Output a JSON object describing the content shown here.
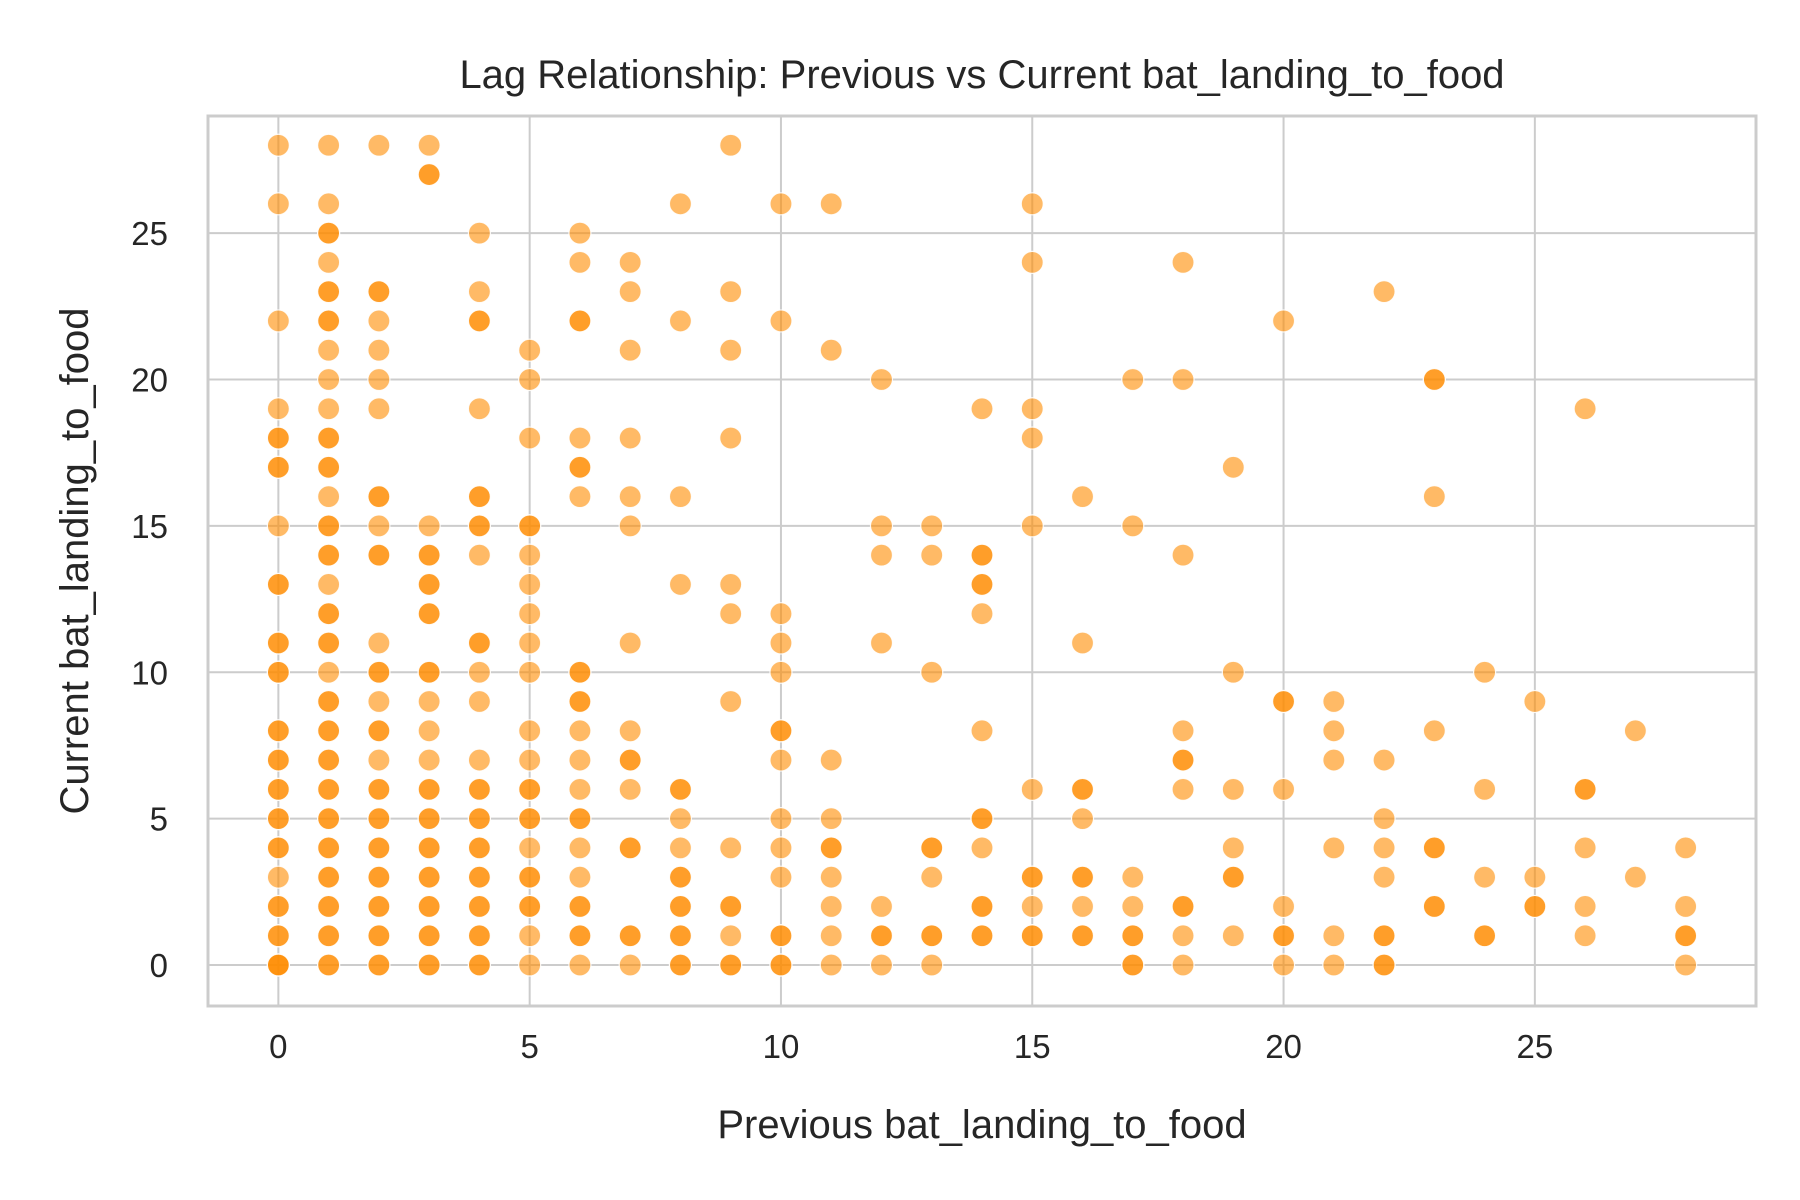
{
  "chart_data": {
    "type": "scatter",
    "title": "Lag Relationship: Previous vs Current bat_landing_to_food",
    "xlabel": "Previous bat_landing_to_food",
    "ylabel": "Current bat_landing_to_food",
    "xlim": [
      -1.4,
      29.4
    ],
    "ylim": [
      -1.4,
      29.0
    ],
    "xticks": [
      0,
      5,
      10,
      15,
      20,
      25
    ],
    "yticks": [
      0,
      5,
      10,
      15,
      20,
      25
    ],
    "grid": true,
    "color": "#ff8c00",
    "points": [
      [
        0,
        28
      ],
      [
        0,
        26
      ],
      [
        0,
        22
      ],
      [
        0,
        19
      ],
      [
        0,
        18
      ],
      [
        0,
        18
      ],
      [
        0,
        17
      ],
      [
        0,
        17
      ],
      [
        0,
        15
      ],
      [
        0,
        13
      ],
      [
        0,
        13
      ],
      [
        0,
        11
      ],
      [
        0,
        11
      ],
      [
        0,
        10
      ],
      [
        0,
        10
      ],
      [
        0,
        8
      ],
      [
        0,
        8
      ],
      [
        0,
        7
      ],
      [
        0,
        7
      ],
      [
        0,
        6
      ],
      [
        0,
        6
      ],
      [
        0,
        5
      ],
      [
        0,
        5
      ],
      [
        0,
        4
      ],
      [
        0,
        4
      ],
      [
        0,
        3
      ],
      [
        0,
        2
      ],
      [
        0,
        2
      ],
      [
        0,
        1
      ],
      [
        0,
        1
      ],
      [
        0,
        0
      ],
      [
        0,
        0
      ],
      [
        0,
        0
      ],
      [
        1,
        28
      ],
      [
        1,
        26
      ],
      [
        1,
        25
      ],
      [
        1,
        25
      ],
      [
        1,
        24
      ],
      [
        1,
        23
      ],
      [
        1,
        23
      ],
      [
        1,
        22
      ],
      [
        1,
        22
      ],
      [
        1,
        21
      ],
      [
        1,
        20
      ],
      [
        1,
        19
      ],
      [
        1,
        18
      ],
      [
        1,
        18
      ],
      [
        1,
        17
      ],
      [
        1,
        17
      ],
      [
        1,
        16
      ],
      [
        1,
        15
      ],
      [
        1,
        15
      ],
      [
        1,
        14
      ],
      [
        1,
        14
      ],
      [
        1,
        13
      ],
      [
        1,
        12
      ],
      [
        1,
        12
      ],
      [
        1,
        11
      ],
      [
        1,
        11
      ],
      [
        1,
        10
      ],
      [
        1,
        9
      ],
      [
        1,
        9
      ],
      [
        1,
        8
      ],
      [
        1,
        8
      ],
      [
        1,
        7
      ],
      [
        1,
        7
      ],
      [
        1,
        6
      ],
      [
        1,
        6
      ],
      [
        1,
        5
      ],
      [
        1,
        5
      ],
      [
        1,
        4
      ],
      [
        1,
        4
      ],
      [
        1,
        3
      ],
      [
        1,
        3
      ],
      [
        1,
        2
      ],
      [
        1,
        2
      ],
      [
        1,
        1
      ],
      [
        1,
        1
      ],
      [
        1,
        0
      ],
      [
        1,
        0
      ],
      [
        2,
        28
      ],
      [
        2,
        23
      ],
      [
        2,
        23
      ],
      [
        2,
        22
      ],
      [
        2,
        21
      ],
      [
        2,
        20
      ],
      [
        2,
        19
      ],
      [
        2,
        16
      ],
      [
        2,
        16
      ],
      [
        2,
        15
      ],
      [
        2,
        14
      ],
      [
        2,
        14
      ],
      [
        2,
        11
      ],
      [
        2,
        10
      ],
      [
        2,
        10
      ],
      [
        2,
        9
      ],
      [
        2,
        8
      ],
      [
        2,
        8
      ],
      [
        2,
        7
      ],
      [
        2,
        6
      ],
      [
        2,
        6
      ],
      [
        2,
        5
      ],
      [
        2,
        5
      ],
      [
        2,
        4
      ],
      [
        2,
        4
      ],
      [
        2,
        3
      ],
      [
        2,
        3
      ],
      [
        2,
        2
      ],
      [
        2,
        2
      ],
      [
        2,
        1
      ],
      [
        2,
        1
      ],
      [
        2,
        0
      ],
      [
        2,
        0
      ],
      [
        3,
        28
      ],
      [
        3,
        27
      ],
      [
        3,
        27
      ],
      [
        3,
        15
      ],
      [
        3,
        14
      ],
      [
        3,
        14
      ],
      [
        3,
        13
      ],
      [
        3,
        13
      ],
      [
        3,
        12
      ],
      [
        3,
        12
      ],
      [
        3,
        10
      ],
      [
        3,
        10
      ],
      [
        3,
        9
      ],
      [
        3,
        8
      ],
      [
        3,
        7
      ],
      [
        3,
        6
      ],
      [
        3,
        6
      ],
      [
        3,
        5
      ],
      [
        3,
        5
      ],
      [
        3,
        4
      ],
      [
        3,
        4
      ],
      [
        3,
        3
      ],
      [
        3,
        3
      ],
      [
        3,
        2
      ],
      [
        3,
        2
      ],
      [
        3,
        1
      ],
      [
        3,
        1
      ],
      [
        3,
        0
      ],
      [
        3,
        0
      ],
      [
        4,
        25
      ],
      [
        4,
        23
      ],
      [
        4,
        22
      ],
      [
        4,
        22
      ],
      [
        4,
        19
      ],
      [
        4,
        16
      ],
      [
        4,
        16
      ],
      [
        4,
        15
      ],
      [
        4,
        15
      ],
      [
        4,
        14
      ],
      [
        4,
        11
      ],
      [
        4,
        11
      ],
      [
        4,
        10
      ],
      [
        4,
        9
      ],
      [
        4,
        7
      ],
      [
        4,
        6
      ],
      [
        4,
        6
      ],
      [
        4,
        5
      ],
      [
        4,
        5
      ],
      [
        4,
        4
      ],
      [
        4,
        4
      ],
      [
        4,
        3
      ],
      [
        4,
        3
      ],
      [
        4,
        2
      ],
      [
        4,
        2
      ],
      [
        4,
        1
      ],
      [
        4,
        1
      ],
      [
        4,
        0
      ],
      [
        4,
        0
      ],
      [
        5,
        21
      ],
      [
        5,
        20
      ],
      [
        5,
        18
      ],
      [
        5,
        15
      ],
      [
        5,
        15
      ],
      [
        5,
        14
      ],
      [
        5,
        13
      ],
      [
        5,
        12
      ],
      [
        5,
        11
      ],
      [
        5,
        10
      ],
      [
        5,
        8
      ],
      [
        5,
        7
      ],
      [
        5,
        6
      ],
      [
        5,
        6
      ],
      [
        5,
        5
      ],
      [
        5,
        5
      ],
      [
        5,
        4
      ],
      [
        5,
        3
      ],
      [
        5,
        3
      ],
      [
        5,
        2
      ],
      [
        5,
        2
      ],
      [
        5,
        1
      ],
      [
        5,
        0
      ],
      [
        6,
        25
      ],
      [
        6,
        24
      ],
      [
        6,
        22
      ],
      [
        6,
        22
      ],
      [
        6,
        18
      ],
      [
        6,
        17
      ],
      [
        6,
        17
      ],
      [
        6,
        16
      ],
      [
        6,
        10
      ],
      [
        6,
        10
      ],
      [
        6,
        9
      ],
      [
        6,
        9
      ],
      [
        6,
        8
      ],
      [
        6,
        7
      ],
      [
        6,
        6
      ],
      [
        6,
        5
      ],
      [
        6,
        5
      ],
      [
        6,
        4
      ],
      [
        6,
        3
      ],
      [
        6,
        2
      ],
      [
        6,
        2
      ],
      [
        6,
        1
      ],
      [
        6,
        1
      ],
      [
        6,
        0
      ],
      [
        7,
        24
      ],
      [
        7,
        23
      ],
      [
        7,
        21
      ],
      [
        7,
        18
      ],
      [
        7,
        16
      ],
      [
        7,
        15
      ],
      [
        7,
        11
      ],
      [
        7,
        8
      ],
      [
        7,
        7
      ],
      [
        7,
        7
      ],
      [
        7,
        6
      ],
      [
        7,
        4
      ],
      [
        7,
        4
      ],
      [
        7,
        1
      ],
      [
        7,
        1
      ],
      [
        7,
        0
      ],
      [
        8,
        26
      ],
      [
        8,
        22
      ],
      [
        8,
        16
      ],
      [
        8,
        13
      ],
      [
        8,
        6
      ],
      [
        8,
        6
      ],
      [
        8,
        5
      ],
      [
        8,
        4
      ],
      [
        8,
        3
      ],
      [
        8,
        3
      ],
      [
        8,
        2
      ],
      [
        8,
        2
      ],
      [
        8,
        1
      ],
      [
        8,
        1
      ],
      [
        8,
        0
      ],
      [
        8,
        0
      ],
      [
        9,
        28
      ],
      [
        9,
        23
      ],
      [
        9,
        21
      ],
      [
        9,
        18
      ],
      [
        9,
        13
      ],
      [
        9,
        12
      ],
      [
        9,
        9
      ],
      [
        9,
        4
      ],
      [
        9,
        2
      ],
      [
        9,
        2
      ],
      [
        9,
        1
      ],
      [
        9,
        0
      ],
      [
        9,
        0
      ],
      [
        10,
        26
      ],
      [
        10,
        22
      ],
      [
        10,
        12
      ],
      [
        10,
        11
      ],
      [
        10,
        10
      ],
      [
        10,
        8
      ],
      [
        10,
        8
      ],
      [
        10,
        7
      ],
      [
        10,
        5
      ],
      [
        10,
        4
      ],
      [
        10,
        3
      ],
      [
        10,
        1
      ],
      [
        10,
        1
      ],
      [
        10,
        0
      ],
      [
        10,
        0
      ],
      [
        11,
        26
      ],
      [
        11,
        21
      ],
      [
        11,
        7
      ],
      [
        11,
        5
      ],
      [
        11,
        4
      ],
      [
        11,
        4
      ],
      [
        11,
        3
      ],
      [
        11,
        2
      ],
      [
        11,
        1
      ],
      [
        11,
        0
      ],
      [
        12,
        20
      ],
      [
        12,
        15
      ],
      [
        12,
        14
      ],
      [
        12,
        11
      ],
      [
        12,
        2
      ],
      [
        12,
        1
      ],
      [
        12,
        1
      ],
      [
        12,
        0
      ],
      [
        13,
        15
      ],
      [
        13,
        14
      ],
      [
        13,
        10
      ],
      [
        13,
        4
      ],
      [
        13,
        4
      ],
      [
        13,
        3
      ],
      [
        13,
        1
      ],
      [
        13,
        1
      ],
      [
        13,
        0
      ],
      [
        14,
        19
      ],
      [
        14,
        14
      ],
      [
        14,
        14
      ],
      [
        14,
        13
      ],
      [
        14,
        13
      ],
      [
        14,
        12
      ],
      [
        14,
        8
      ],
      [
        14,
        5
      ],
      [
        14,
        5
      ],
      [
        14,
        4
      ],
      [
        14,
        2
      ],
      [
        14,
        2
      ],
      [
        14,
        1
      ],
      [
        14,
        1
      ],
      [
        15,
        26
      ],
      [
        15,
        24
      ],
      [
        15,
        19
      ],
      [
        15,
        18
      ],
      [
        15,
        15
      ],
      [
        15,
        6
      ],
      [
        15,
        3
      ],
      [
        15,
        3
      ],
      [
        15,
        2
      ],
      [
        15,
        1
      ],
      [
        15,
        1
      ],
      [
        16,
        16
      ],
      [
        16,
        11
      ],
      [
        16,
        6
      ],
      [
        16,
        6
      ],
      [
        16,
        5
      ],
      [
        16,
        3
      ],
      [
        16,
        3
      ],
      [
        16,
        2
      ],
      [
        16,
        1
      ],
      [
        16,
        1
      ],
      [
        17,
        20
      ],
      [
        17,
        15
      ],
      [
        17,
        3
      ],
      [
        17,
        2
      ],
      [
        17,
        1
      ],
      [
        17,
        1
      ],
      [
        17,
        0
      ],
      [
        17,
        0
      ],
      [
        18,
        24
      ],
      [
        18,
        20
      ],
      [
        18,
        14
      ],
      [
        18,
        8
      ],
      [
        18,
        7
      ],
      [
        18,
        7
      ],
      [
        18,
        6
      ],
      [
        18,
        2
      ],
      [
        18,
        2
      ],
      [
        18,
        1
      ],
      [
        18,
        0
      ],
      [
        19,
        17
      ],
      [
        19,
        10
      ],
      [
        19,
        6
      ],
      [
        19,
        4
      ],
      [
        19,
        3
      ],
      [
        19,
        3
      ],
      [
        19,
        1
      ],
      [
        20,
        22
      ],
      [
        20,
        9
      ],
      [
        20,
        9
      ],
      [
        20,
        6
      ],
      [
        20,
        2
      ],
      [
        20,
        1
      ],
      [
        20,
        1
      ],
      [
        20,
        0
      ],
      [
        21,
        9
      ],
      [
        21,
        8
      ],
      [
        21,
        7
      ],
      [
        21,
        4
      ],
      [
        21,
        1
      ],
      [
        21,
        0
      ],
      [
        22,
        23
      ],
      [
        22,
        7
      ],
      [
        22,
        5
      ],
      [
        22,
        4
      ],
      [
        22,
        3
      ],
      [
        22,
        1
      ],
      [
        22,
        1
      ],
      [
        22,
        0
      ],
      [
        22,
        0
      ],
      [
        23,
        20
      ],
      [
        23,
        20
      ],
      [
        23,
        16
      ],
      [
        23,
        8
      ],
      [
        23,
        4
      ],
      [
        23,
        4
      ],
      [
        23,
        2
      ],
      [
        23,
        2
      ],
      [
        24,
        10
      ],
      [
        24,
        6
      ],
      [
        24,
        3
      ],
      [
        24,
        1
      ],
      [
        24,
        1
      ],
      [
        25,
        9
      ],
      [
        25,
        3
      ],
      [
        25,
        2
      ],
      [
        25,
        2
      ],
      [
        26,
        19
      ],
      [
        26,
        6
      ],
      [
        26,
        6
      ],
      [
        26,
        4
      ],
      [
        26,
        2
      ],
      [
        26,
        1
      ],
      [
        27,
        8
      ],
      [
        27,
        3
      ],
      [
        28,
        4
      ],
      [
        28,
        2
      ],
      [
        28,
        1
      ],
      [
        28,
        1
      ],
      [
        28,
        0
      ]
    ]
  }
}
